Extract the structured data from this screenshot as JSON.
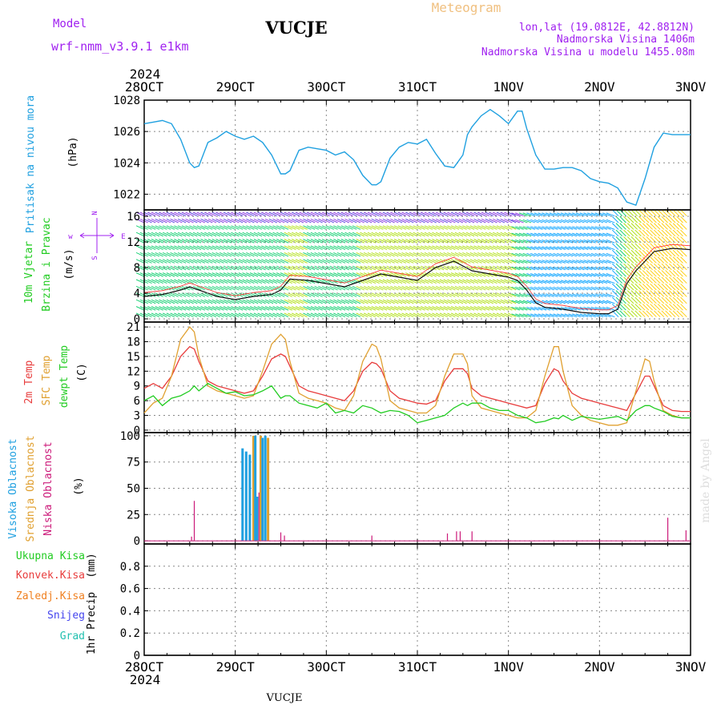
{
  "header": {
    "model_label": "Model",
    "model_name": "wrf-nmm_v3.9.1  e1km",
    "station": "VUCJE",
    "product": "Meteogram",
    "coords": "lon,lat (19.0812E, 42.8812N)",
    "elevation": "Nadmorska Visina 1406m",
    "model_elevation": "Nadmorska Visina u modelu 1455.08m"
  },
  "footer": {
    "station": "VUCJE",
    "credit": "made by Angel"
  },
  "time_axis": {
    "year": "2024",
    "labels": [
      "28OCT",
      "29OCT",
      "30OCT",
      "31OCT",
      "1NOV",
      "2NOV",
      "3NOV"
    ]
  },
  "colors": {
    "pressure": "#1fa0e0",
    "temp2m": "#e83c3c",
    "sfc_temp": "#e0a030",
    "dewpt": "#22cc22",
    "high_cloud": "#1fa0e0",
    "mid_cloud": "#e0a030",
    "low_cloud": "#cc1a7a",
    "total_precip": "#22cc22",
    "conv_precip": "#e83c3c",
    "freezing": "#f08020",
    "snow": "#4444ee",
    "hail": "#22c0b0",
    "wind_label": "#22cc22",
    "compass": "#a020f0",
    "gray_line": "#444444"
  },
  "compass": {
    "w": "w",
    "e": "E",
    "n": "N",
    "s": "S"
  },
  "chart_data": [
    {
      "type": "line",
      "panel": "pressure",
      "ylabel_name": "Pritisak na nivou mora",
      "ylabel_unit": "(hPa)",
      "ylim": [
        1021,
        1028
      ],
      "yticks": [
        1022,
        1024,
        1026,
        1028
      ],
      "x_days": [
        0.0,
        0.1,
        0.2,
        0.3,
        0.4,
        0.5,
        0.55,
        0.6,
        0.7,
        0.8,
        0.9,
        1.0,
        1.1,
        1.2,
        1.3,
        1.4,
        1.5,
        1.55,
        1.6,
        1.7,
        1.8,
        1.9,
        2.0,
        2.1,
        2.2,
        2.3,
        2.4,
        2.5,
        2.55,
        2.6,
        2.7,
        2.8,
        2.9,
        3.0,
        3.1,
        3.2,
        3.3,
        3.4,
        3.5,
        3.55,
        3.6,
        3.7,
        3.8,
        3.9,
        4.0,
        4.1,
        4.15,
        4.2,
        4.3,
        4.4,
        4.5,
        4.6,
        4.7,
        4.8,
        4.9,
        5.0,
        5.1,
        5.2,
        5.3,
        5.4,
        5.5,
        5.6,
        5.7,
        5.8,
        5.9,
        6.0
      ],
      "series": [
        {
          "color": "#1fa0e0",
          "values": [
            1026.5,
            1026.6,
            1026.7,
            1026.5,
            1025.5,
            1024.0,
            1023.7,
            1023.8,
            1025.3,
            1025.6,
            1026.0,
            1025.7,
            1025.5,
            1025.7,
            1025.3,
            1024.5,
            1023.3,
            1023.3,
            1023.5,
            1024.8,
            1025.0,
            1024.9,
            1024.8,
            1024.5,
            1024.7,
            1024.2,
            1023.2,
            1022.6,
            1022.6,
            1022.8,
            1024.3,
            1025.0,
            1025.3,
            1025.2,
            1025.5,
            1024.6,
            1023.8,
            1023.7,
            1024.5,
            1025.8,
            1026.3,
            1027.0,
            1027.4,
            1027.0,
            1026.5,
            1027.3,
            1027.3,
            1026.2,
            1024.5,
            1023.6,
            1023.6,
            1023.7,
            1023.7,
            1023.5,
            1023.0,
            1022.8,
            1022.7,
            1022.4,
            1021.5,
            1021.3,
            1023.0,
            1025.0,
            1025.9,
            1025.8,
            1025.8,
            1025.8
          ]
        }
      ]
    },
    {
      "type": "line",
      "panel": "wind",
      "ylabel_name1": "10m Vjetar",
      "ylabel_name2": "Brzina i Pravac",
      "ylabel_unit": "(m/s)",
      "ylim": [
        -0.5,
        17
      ],
      "yticks": [
        0,
        4,
        8,
        12,
        16
      ],
      "x_days": [
        0.0,
        0.2,
        0.4,
        0.5,
        0.6,
        0.8,
        1.0,
        1.2,
        1.4,
        1.5,
        1.6,
        1.8,
        2.0,
        2.2,
        2.4,
        2.6,
        2.8,
        3.0,
        3.2,
        3.4,
        3.6,
        3.8,
        4.0,
        4.1,
        4.2,
        4.3,
        4.4,
        4.6,
        4.8,
        5.0,
        5.1,
        5.2,
        5.3,
        5.4,
        5.5,
        5.6,
        5.8,
        6.0
      ],
      "series": [
        {
          "name": "speed",
          "color": "#111111",
          "values": [
            3.5,
            3.8,
            4.5,
            5.0,
            4.5,
            3.5,
            3.0,
            3.5,
            3.8,
            4.5,
            6.2,
            6.0,
            5.5,
            5.0,
            6.0,
            7.0,
            6.5,
            6.0,
            8.0,
            9.0,
            7.5,
            7.0,
            6.5,
            6.0,
            4.5,
            2.5,
            1.8,
            1.5,
            1.0,
            0.8,
            0.8,
            1.5,
            5.5,
            7.5,
            9.0,
            10.5,
            11.0,
            10.8
          ]
        }
      ],
      "speed_colors": [
        [
          0,
          "#00a0ff"
        ],
        [
          3,
          "#00cc66"
        ],
        [
          6,
          "#aadd00"
        ],
        [
          9,
          "#ffcc00"
        ],
        [
          12,
          "#ff6600"
        ],
        [
          15,
          "#ee0000"
        ]
      ]
    },
    {
      "type": "line",
      "panel": "temperature",
      "ylabel_name1": "2m Temp",
      "ylabel_name2": "SFC Temp",
      "ylabel_name3": "dewpt Temp",
      "ylabel_unit": "(C)",
      "ylim": [
        -0.5,
        22
      ],
      "yticks": [
        0,
        3,
        6,
        9,
        12,
        15,
        18,
        21
      ],
      "x_days": [
        0.0,
        0.1,
        0.2,
        0.3,
        0.4,
        0.5,
        0.55,
        0.6,
        0.7,
        0.8,
        0.9,
        1.0,
        1.1,
        1.2,
        1.3,
        1.4,
        1.5,
        1.55,
        1.6,
        1.7,
        1.8,
        1.9,
        2.0,
        2.1,
        2.2,
        2.3,
        2.4,
        2.5,
        2.55,
        2.6,
        2.7,
        2.8,
        2.9,
        3.0,
        3.1,
        3.2,
        3.3,
        3.4,
        3.5,
        3.55,
        3.6,
        3.7,
        3.8,
        3.9,
        4.0,
        4.1,
        4.2,
        4.3,
        4.4,
        4.5,
        4.55,
        4.6,
        4.7,
        4.8,
        4.9,
        5.0,
        5.1,
        5.2,
        5.3,
        5.4,
        5.5,
        5.55,
        5.6,
        5.7,
        5.8,
        5.9,
        6.0
      ],
      "series": [
        {
          "name": "2m Temp",
          "color": "#e83c3c",
          "values": [
            8.5,
            9.5,
            8.5,
            11.0,
            15.0,
            17.0,
            16.5,
            14.0,
            10.0,
            9.0,
            8.5,
            8.0,
            7.5,
            8.0,
            11.0,
            14.5,
            15.5,
            15.0,
            13.0,
            9.0,
            8.0,
            7.5,
            7.0,
            6.5,
            6.0,
            8.0,
            12.0,
            13.8,
            13.5,
            12.5,
            8.0,
            6.5,
            6.0,
            5.5,
            5.3,
            6.0,
            10.0,
            12.5,
            12.5,
            11.5,
            8.5,
            7.0,
            6.5,
            6.0,
            5.5,
            5.0,
            4.5,
            5.0,
            9.5,
            12.5,
            12.0,
            10.0,
            7.5,
            6.5,
            6.0,
            5.5,
            5.0,
            4.5,
            4.0,
            7.5,
            11.0,
            11.0,
            9.0,
            5.0,
            4.0,
            3.8,
            3.8
          ]
        },
        {
          "name": "SFC Temp",
          "color": "#e0a030",
          "values": [
            3.5,
            5.5,
            6.5,
            11.0,
            18.5,
            21.0,
            20.0,
            15.0,
            9.0,
            8.0,
            7.5,
            7.0,
            6.5,
            7.0,
            12.0,
            17.5,
            19.5,
            18.5,
            14.0,
            7.5,
            6.5,
            6.0,
            5.5,
            4.5,
            4.0,
            7.0,
            14.0,
            17.5,
            17.0,
            14.5,
            6.0,
            4.5,
            4.0,
            3.5,
            3.5,
            5.0,
            11.0,
            15.5,
            15.5,
            13.5,
            7.0,
            4.5,
            4.0,
            3.5,
            3.0,
            2.5,
            2.5,
            4.0,
            11.0,
            17.0,
            17.0,
            12.0,
            5.0,
            3.0,
            2.0,
            1.5,
            1.0,
            1.0,
            1.5,
            8.0,
            14.5,
            14.0,
            10.0,
            4.0,
            3.0,
            2.5,
            2.5
          ]
        },
        {
          "name": "dewpt Temp",
          "color": "#22cc22",
          "values": [
            6.0,
            7.0,
            5.0,
            6.5,
            7.0,
            8.0,
            9.0,
            8.0,
            9.5,
            8.5,
            7.5,
            7.8,
            7.0,
            7.2,
            8.0,
            9.0,
            6.5,
            7.0,
            7.0,
            5.5,
            5.0,
            4.5,
            5.5,
            3.5,
            4.0,
            3.5,
            5.0,
            4.5,
            4.0,
            3.5,
            4.0,
            3.8,
            3.0,
            1.5,
            2.0,
            2.5,
            3.0,
            4.5,
            5.5,
            5.0,
            5.5,
            5.5,
            4.5,
            4.0,
            4.0,
            3.0,
            2.5,
            1.5,
            1.8,
            2.5,
            2.3,
            3.0,
            2.0,
            2.8,
            2.5,
            2.2,
            2.5,
            2.8,
            2.0,
            4.0,
            5.0,
            5.0,
            4.5,
            3.8,
            2.8,
            2.5,
            2.5
          ]
        }
      ]
    },
    {
      "type": "bar",
      "panel": "clouds",
      "ylabel_name1": "Visoka Oblacnost",
      "ylabel_name2": "Srednja Oblacnost",
      "ylabel_name3": "Niska Oblacnost",
      "ylabel_unit": "(%)",
      "ylim": [
        -3,
        103
      ],
      "yticks": [
        0,
        25,
        50,
        75,
        100
      ],
      "bars": [
        {
          "series": "low",
          "x_day": 0.55,
          "value": 38
        },
        {
          "series": "low",
          "x_day": 0.52,
          "value": 4
        },
        {
          "series": "high",
          "x_day": 1.08,
          "value": 88
        },
        {
          "series": "high",
          "x_day": 1.12,
          "value": 85
        },
        {
          "series": "high",
          "x_day": 1.16,
          "value": 82
        },
        {
          "series": "mid",
          "x_day": 1.2,
          "value": 100
        },
        {
          "series": "high",
          "x_day": 1.22,
          "value": 100
        },
        {
          "series": "high",
          "x_day": 1.24,
          "value": 42
        },
        {
          "series": "low",
          "x_day": 1.26,
          "value": 46
        },
        {
          "series": "mid",
          "x_day": 1.28,
          "value": 100
        },
        {
          "series": "high",
          "x_day": 1.3,
          "value": 98
        },
        {
          "series": "high",
          "x_day": 1.33,
          "value": 100
        },
        {
          "series": "mid",
          "x_day": 1.36,
          "value": 98
        },
        {
          "series": "low",
          "x_day": 1.5,
          "value": 8
        },
        {
          "series": "low",
          "x_day": 1.54,
          "value": 5
        },
        {
          "series": "low",
          "x_day": 2.5,
          "value": 5
        },
        {
          "series": "low",
          "x_day": 3.33,
          "value": 7
        },
        {
          "series": "low",
          "x_day": 3.43,
          "value": 9
        },
        {
          "series": "low",
          "x_day": 3.47,
          "value": 9
        },
        {
          "series": "low",
          "x_day": 3.6,
          "value": 9
        },
        {
          "series": "low",
          "x_day": 5.75,
          "value": 22
        },
        {
          "series": "low",
          "x_day": 5.95,
          "value": 10
        }
      ]
    },
    {
      "type": "bar",
      "panel": "precip",
      "legend": [
        "Ukupna Kisa",
        "Konvek.Kisa",
        "Zaledj.Kisa",
        "Snijeg",
        "Grad"
      ],
      "ylabel_name": "1hr Precip",
      "ylabel_unit": "(mm)",
      "ylim": [
        0,
        1
      ],
      "yticks": [
        "0",
        "0.2",
        "0.4",
        "0.6",
        "0.8"
      ],
      "bars": []
    }
  ]
}
